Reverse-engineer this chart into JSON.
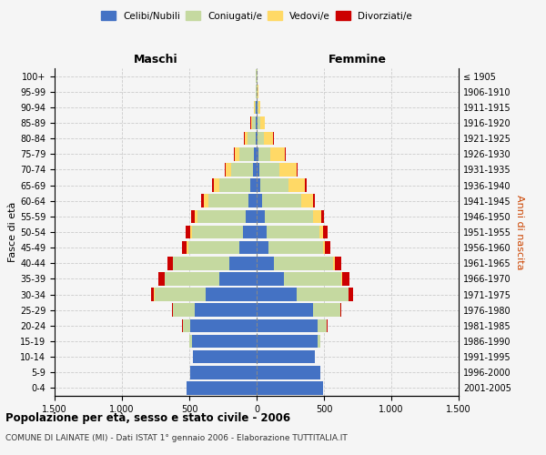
{
  "age_groups": [
    "0-4",
    "5-9",
    "10-14",
    "15-19",
    "20-24",
    "25-29",
    "30-34",
    "35-39",
    "40-44",
    "45-49",
    "50-54",
    "55-59",
    "60-64",
    "65-69",
    "70-74",
    "75-79",
    "80-84",
    "85-89",
    "90-94",
    "95-99",
    "100+"
  ],
  "year_labels": [
    "2001-2005",
    "1996-2000",
    "1991-1995",
    "1986-1990",
    "1981-1985",
    "1976-1980",
    "1971-1975",
    "1966-1970",
    "1961-1965",
    "1956-1960",
    "1951-1955",
    "1946-1950",
    "1941-1945",
    "1936-1940",
    "1931-1935",
    "1926-1930",
    "1921-1925",
    "1916-1920",
    "1911-1915",
    "1906-1910",
    "≤ 1905"
  ],
  "male_celibi": [
    520,
    490,
    470,
    480,
    490,
    460,
    380,
    280,
    200,
    130,
    100,
    80,
    60,
    50,
    30,
    18,
    10,
    8,
    4,
    2,
    2
  ],
  "male_coniugati": [
    1,
    2,
    5,
    20,
    60,
    160,
    380,
    400,
    420,
    380,
    380,
    360,
    300,
    230,
    160,
    110,
    55,
    25,
    8,
    4,
    2
  ],
  "male_vedovi": [
    0,
    0,
    0,
    0,
    0,
    1,
    2,
    3,
    5,
    8,
    15,
    20,
    30,
    35,
    40,
    35,
    25,
    10,
    5,
    2,
    1
  ],
  "male_divorziati": [
    0,
    0,
    0,
    1,
    2,
    5,
    20,
    45,
    40,
    35,
    30,
    25,
    20,
    15,
    8,
    5,
    3,
    2,
    1,
    0,
    0
  ],
  "female_celibi": [
    490,
    470,
    430,
    450,
    450,
    420,
    300,
    200,
    130,
    90,
    75,
    60,
    40,
    28,
    18,
    12,
    8,
    6,
    4,
    2,
    2
  ],
  "female_coniugati": [
    1,
    2,
    5,
    20,
    70,
    200,
    380,
    430,
    440,
    400,
    390,
    360,
    290,
    210,
    150,
    90,
    45,
    20,
    10,
    4,
    2
  ],
  "female_vedovi": [
    0,
    0,
    0,
    0,
    1,
    2,
    4,
    6,
    10,
    20,
    30,
    60,
    90,
    120,
    130,
    110,
    70,
    35,
    15,
    5,
    2
  ],
  "female_divorziati": [
    0,
    0,
    0,
    1,
    3,
    8,
    30,
    55,
    50,
    35,
    30,
    20,
    15,
    12,
    8,
    5,
    3,
    2,
    1,
    0,
    0
  ],
  "colors": {
    "celibi": "#4472c4",
    "coniugati": "#c5d9a0",
    "vedovi": "#ffd966",
    "divorziati": "#cc0000"
  },
  "title": "Popolazione per età, sesso e stato civile - 2006",
  "subtitle": "COMUNE DI LAINATE (MI) - Dati ISTAT 1° gennaio 2006 - Elaborazione TUTTITALIA.IT",
  "xlabel_left": "Maschi",
  "xlabel_right": "Femmine",
  "ylabel_left": "Fasce di età",
  "ylabel_right": "Anni di nascita",
  "xlim": 1500,
  "xticks": [
    -1500,
    -1000,
    -500,
    0,
    500,
    1000,
    1500
  ],
  "xticklabels": [
    "1.500",
    "1.000",
    "500",
    "0",
    "500",
    "1.000",
    "1.500"
  ],
  "bg_color": "#f5f5f5",
  "grid_color": "#cccccc"
}
